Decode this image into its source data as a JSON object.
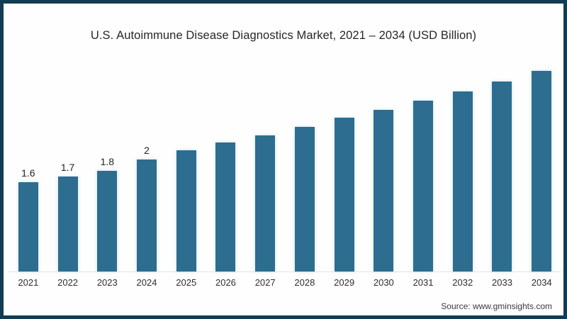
{
  "title": "U.S. Autoimmune Disease Diagnostics Market, 2021 – 2034 (USD Billion)",
  "source": "Source: www.gminsights.com",
  "frame": {
    "border_color": "#113c54",
    "background": "#fefefe"
  },
  "chart_data": {
    "type": "bar",
    "title": "U.S. Autoimmune Disease Diagnostics Market, 2021 – 2034 (USD Billion)",
    "categories": [
      "2021",
      "2022",
      "2023",
      "2024",
      "2025",
      "2026",
      "2027",
      "2028",
      "2029",
      "2030",
      "2031",
      "2032",
      "2033",
      "2034"
    ],
    "values": [
      1.6,
      1.7,
      1.8,
      2,
      2.16,
      2.3,
      2.43,
      2.59,
      2.75,
      2.89,
      3.05,
      3.22,
      3.39,
      3.58
    ],
    "bar_labels": [
      "1.6",
      "1.7",
      "1.8",
      "2",
      "",
      "",
      "",
      "",
      "",
      "",
      "",
      "",
      "",
      ""
    ],
    "xlabel": "",
    "ylabel": "",
    "ylim": [
      0,
      3.8
    ],
    "bar_color": "#2d6d8f",
    "axis_line_color": "#e3e3e3",
    "grid": false,
    "legend": false
  }
}
